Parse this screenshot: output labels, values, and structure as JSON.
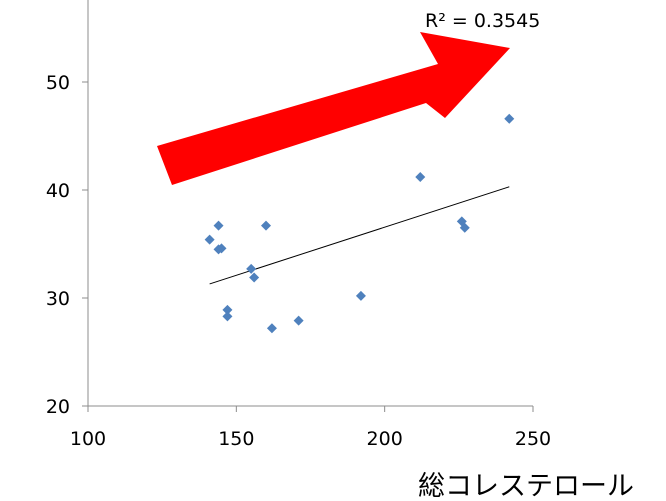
{
  "chart_data": {
    "type": "scatter",
    "xlabel": "総コレステロール",
    "ylabel": "",
    "xlim": [
      100,
      250
    ],
    "ylim": [
      20,
      57
    ],
    "x_ticks": [
      100,
      150,
      200,
      250
    ],
    "y_ticks": [
      20,
      30,
      40,
      50
    ],
    "grid": false,
    "series": [
      {
        "color": "#4f81bd",
        "marker": "diamond",
        "points": [
          {
            "x": 141,
            "y": 35.4
          },
          {
            "x": 144,
            "y": 36.7
          },
          {
            "x": 144,
            "y": 34.5
          },
          {
            "x": 145,
            "y": 34.6
          },
          {
            "x": 147,
            "y": 28.9
          },
          {
            "x": 147,
            "y": 28.3
          },
          {
            "x": 155,
            "y": 32.7
          },
          {
            "x": 156,
            "y": 31.9
          },
          {
            "x": 160,
            "y": 36.7
          },
          {
            "x": 162,
            "y": 27.2
          },
          {
            "x": 171,
            "y": 27.9
          },
          {
            "x": 192,
            "y": 30.2
          },
          {
            "x": 212,
            "y": 41.2
          },
          {
            "x": 226,
            "y": 37.1
          },
          {
            "x": 227,
            "y": 36.5
          },
          {
            "x": 242,
            "y": 46.6
          }
        ]
      }
    ],
    "trendline": {
      "type": "linear",
      "x_range": [
        141,
        242
      ],
      "y_at_start": 31.3,
      "y_at_end": 40.3,
      "color": "#000000",
      "r_squared_label": "R² = 0.3545"
    },
    "annotation_arrow": {
      "color": "#ff0000",
      "direction": "up-right"
    }
  }
}
